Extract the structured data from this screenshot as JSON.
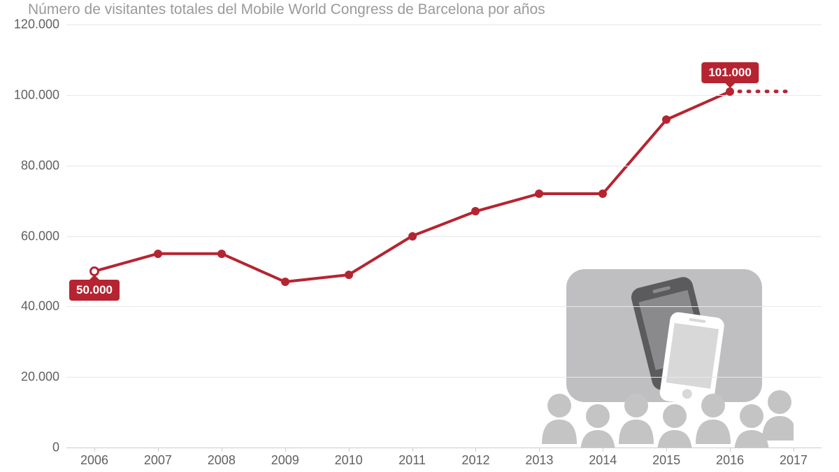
{
  "title": "Número de visitantes totales del Mobile World Congress de Barcelona por años",
  "chart": {
    "type": "line",
    "ylim": [
      0,
      120000
    ],
    "ytick_step": 20000,
    "y_tick_labels": [
      "0",
      "20.000",
      "40.000",
      "60.000",
      "80.000",
      "100.000",
      "120.000"
    ],
    "x_labels": [
      "2006",
      "2007",
      "2008",
      "2009",
      "2010",
      "2011",
      "2012",
      "2013",
      "2014",
      "2015",
      "2016",
      "2017"
    ],
    "values": [
      50000,
      55000,
      55000,
      47000,
      49000,
      60000,
      67000,
      72000,
      72000,
      93000,
      101000,
      101000
    ],
    "dashed_index_start": 10,
    "hollow_point_index": 0,
    "last_real_point_index": 10,
    "callouts": [
      {
        "index": 0,
        "text": "50.000",
        "pos": "below"
      },
      {
        "index": 10,
        "text": "101.000",
        "pos": "above"
      }
    ],
    "colors": {
      "line": "#b62431",
      "marker_fill": "#b62431",
      "hollow_fill": "#ffffff",
      "grid": "#e8e8e8",
      "axis": "#cccccc",
      "text_axis": "#606060",
      "title": "#9a9a9a",
      "callout_bg": "#b62431",
      "callout_text": "#ffffff",
      "background": "#ffffff",
      "decor_screen": "#bfbfc1",
      "decor_phone_dark": "#5b5b5d",
      "decor_phone_light": "#ffffff",
      "decor_people": "#c4c4c4"
    },
    "line_width": 4,
    "marker_size": 12,
    "title_fontsize": 21,
    "axis_fontsize": 18,
    "callout_fontsize": 17
  }
}
